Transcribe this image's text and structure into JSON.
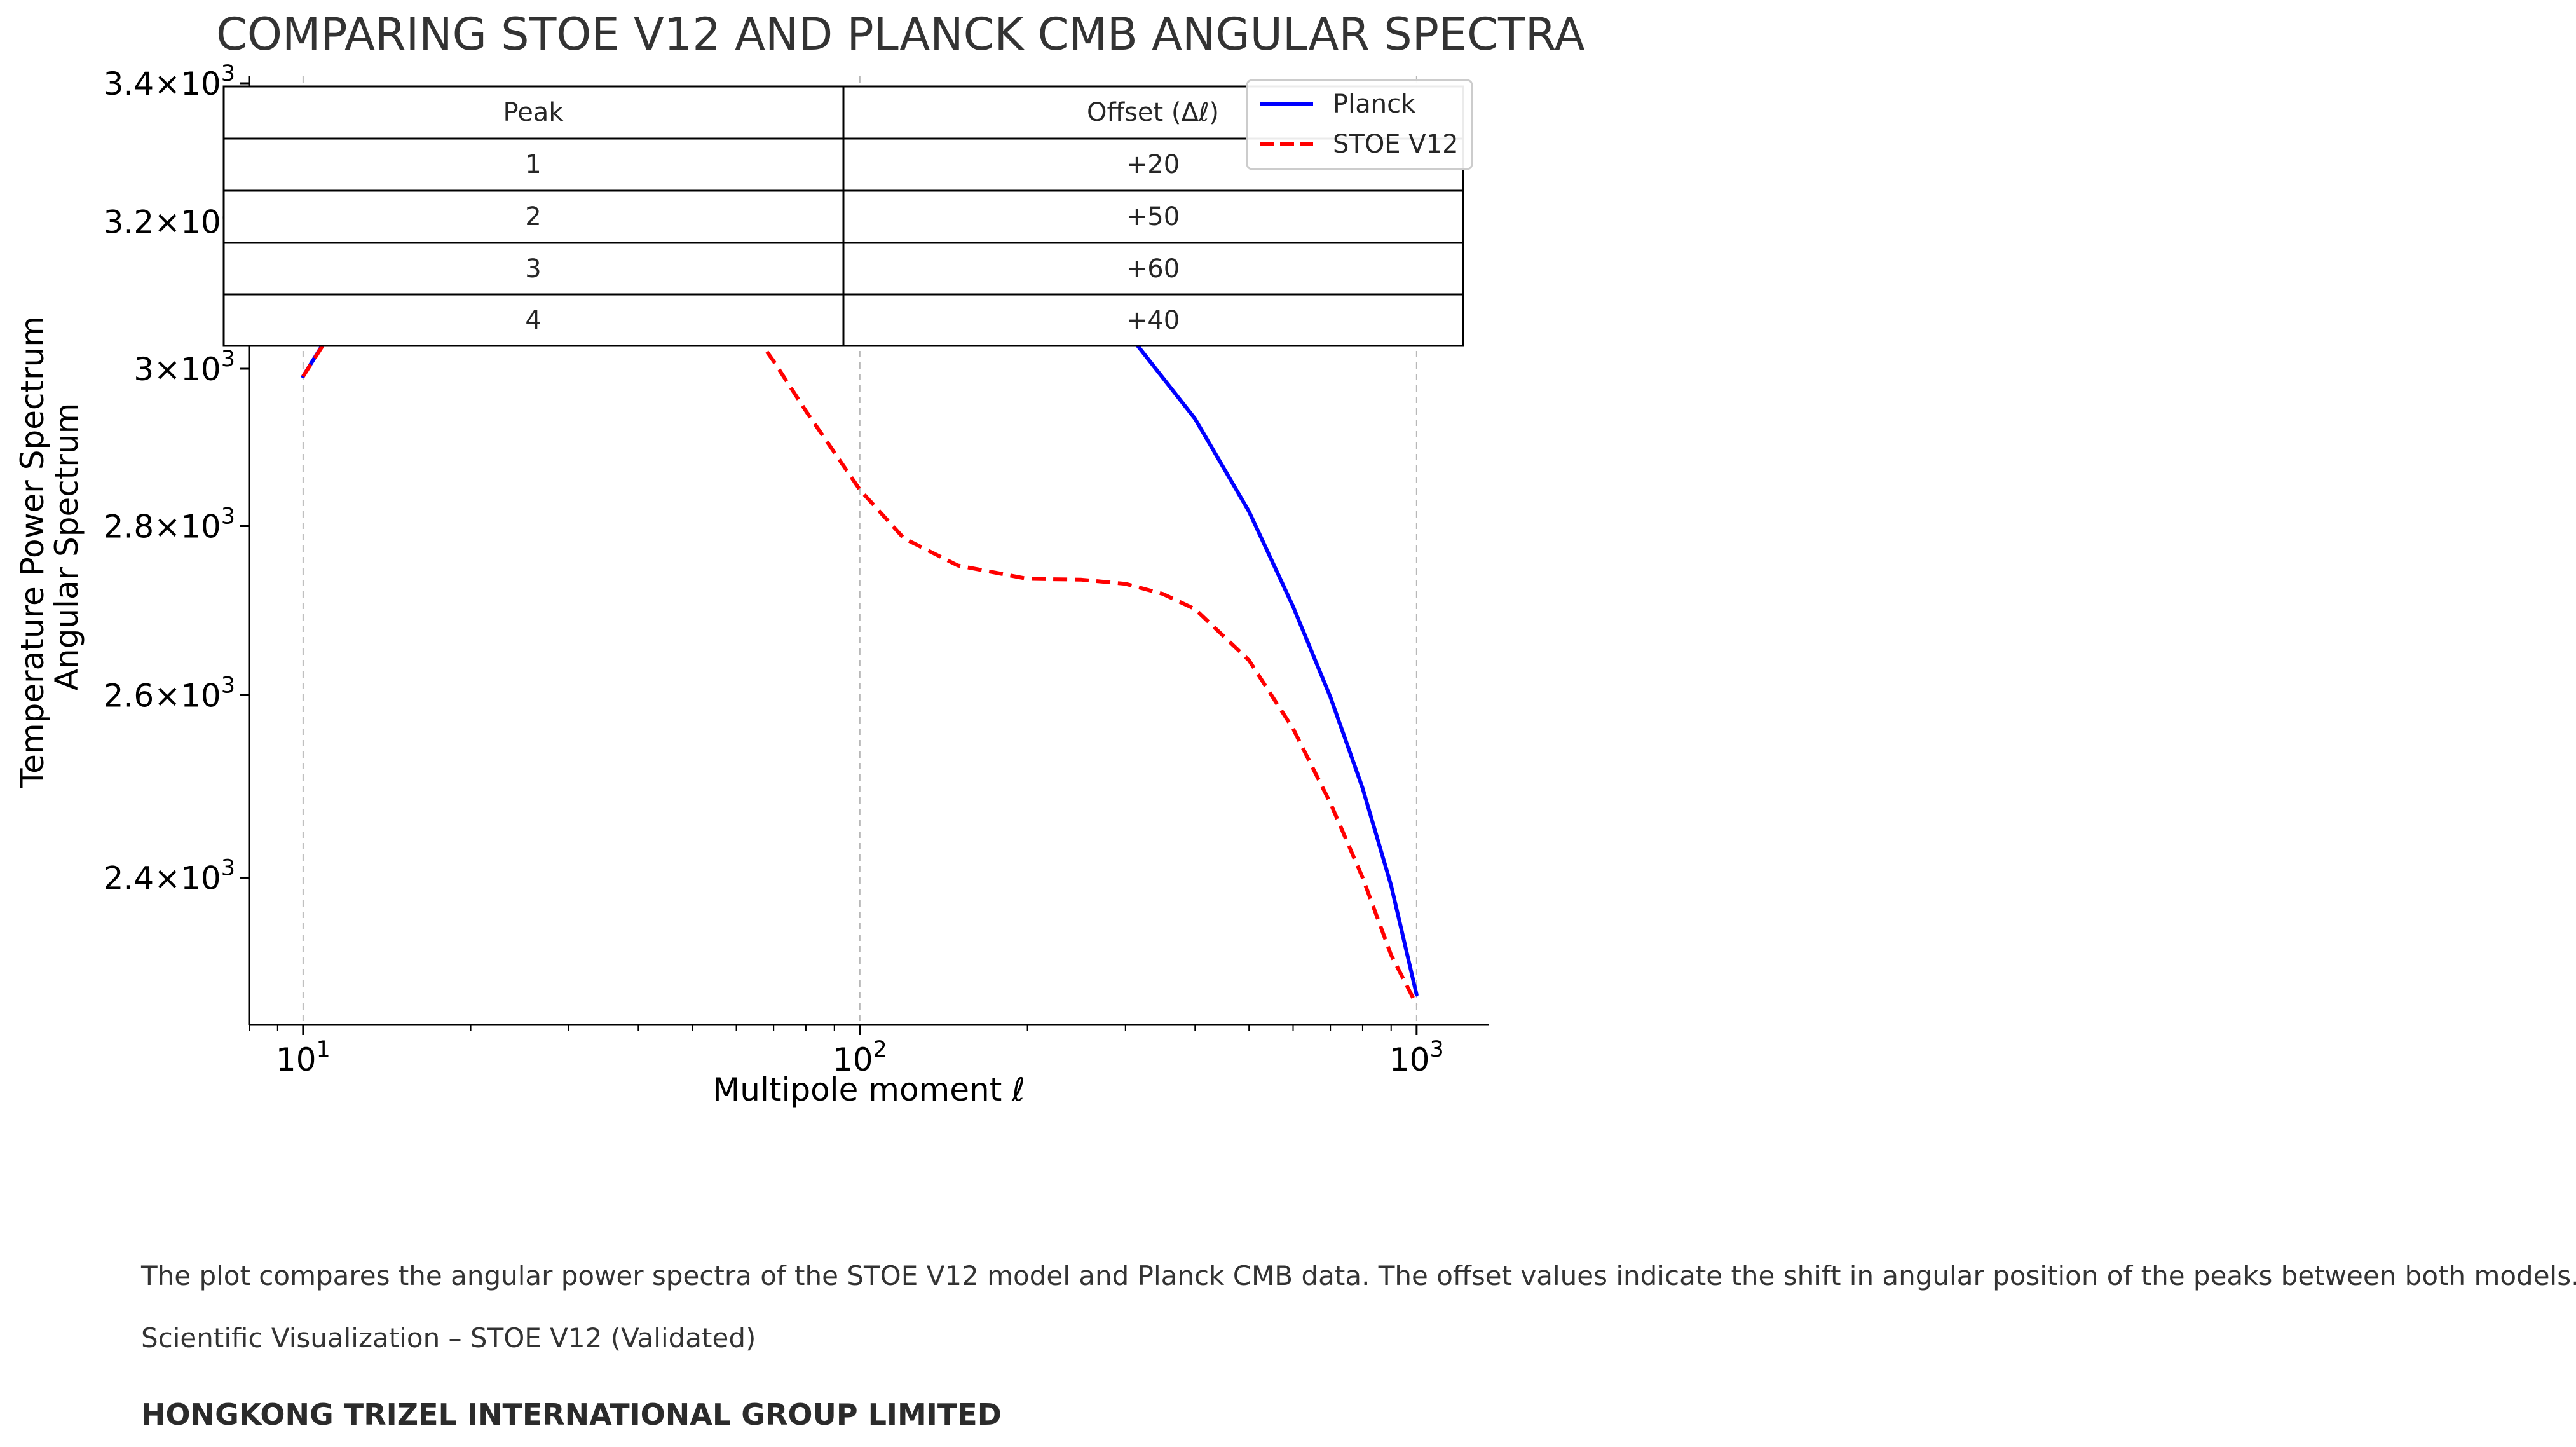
{
  "chart_data": {
    "type": "line",
    "title": "COMPARING STOE V12 AND PLANCK CMB ANGULAR SPECTRA",
    "xlabel": "Multipole moment ℓ",
    "ylabel_lines": [
      "Temperature Power Spectrum",
      "Angular Spectrum"
    ],
    "x_scale": "log",
    "y_scale": "log",
    "xlim": [
      8,
      1350
    ],
    "ylim": [
      2250,
      3400
    ],
    "x_ticks": [
      {
        "value": 10,
        "base": "10",
        "exp": "1"
      },
      {
        "value": 100,
        "base": "10",
        "exp": "2"
      },
      {
        "value": 1000,
        "base": "10",
        "exp": "3"
      }
    ],
    "y_ticks": [
      {
        "value": 2400,
        "mant": "2.4",
        "exp": "3"
      },
      {
        "value": 2600,
        "mant": "2.6",
        "exp": "3"
      },
      {
        "value": 2800,
        "mant": "2.8",
        "exp": "3"
      },
      {
        "value": 3000,
        "mant": "3",
        "exp": "3"
      },
      {
        "value": 3200,
        "mant": "3.2",
        "exp": "3"
      },
      {
        "value": 3400,
        "mant": "3.4",
        "exp": "3"
      }
    ],
    "grid": "x-major dashed",
    "legend_position": "top-right",
    "series": [
      {
        "name": "Planck",
        "color": "#0000ff",
        "style": "solid",
        "x": [
          10,
          12,
          15,
          20,
          25,
          30,
          40,
          50,
          55,
          60,
          70,
          80,
          100,
          120,
          150,
          200,
          250,
          300,
          400,
          500,
          600,
          700,
          800,
          900,
          1000
        ],
        "y": [
          2990,
          3085,
          3180,
          3267,
          3317,
          3340,
          3363,
          3369,
          3370,
          3368,
          3363,
          3354,
          3332,
          3305,
          3260,
          3185,
          3118,
          3051,
          2935,
          2818,
          2703,
          2598,
          2496,
          2392,
          2280
        ]
      },
      {
        "name": "STOE V12",
        "color": "#ff0000",
        "style": "dashed",
        "x": [
          10,
          12,
          15,
          20,
          25,
          30,
          35,
          40,
          50,
          60,
          70,
          80,
          100,
          120,
          150,
          200,
          250,
          300,
          350,
          400,
          500,
          600,
          700,
          800,
          900,
          1000
        ],
        "y": [
          2990,
          3082,
          3160,
          3218,
          3238,
          3240,
          3232,
          3215,
          3150,
          3080,
          3010,
          2945,
          2845,
          2785,
          2752,
          2736,
          2735,
          2730,
          2718,
          2700,
          2640,
          2562,
          2480,
          2400,
          2320,
          2270
        ]
      }
    ],
    "table": {
      "headers": [
        "Peak",
        "Offset (Δℓ)"
      ],
      "rows": [
        [
          "1",
          "+20"
        ],
        [
          "2",
          "+50"
        ],
        [
          "3",
          "+60"
        ],
        [
          "4",
          "+40"
        ]
      ]
    }
  },
  "captions": {
    "description": "The plot compares the angular power spectra of the STOE V12 model and Planck CMB data. The offset values indicate the shift in angular position of the peaks between both models.",
    "credit": "Scientific Visualization – STOE V12 (Validated)",
    "company": "HONGKONG TRIZEL INTERNATIONAL GROUP LIMITED"
  }
}
